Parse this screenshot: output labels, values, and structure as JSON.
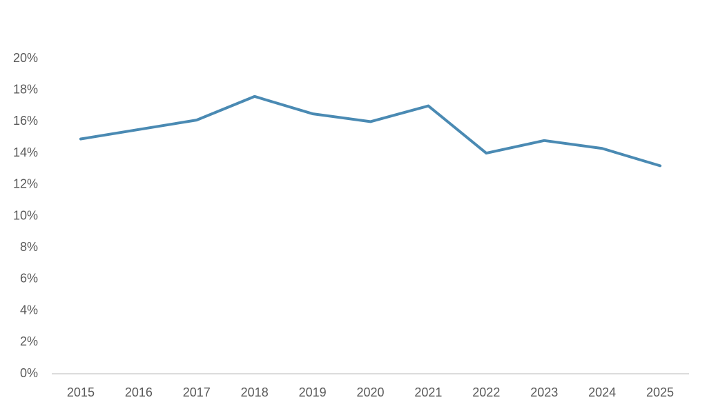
{
  "chart_data": {
    "type": "line",
    "categories": [
      "2015",
      "2016",
      "2017",
      "2018",
      "2019",
      "2020",
      "2021",
      "2022",
      "2023",
      "2024",
      "2025"
    ],
    "values": [
      14.9,
      15.5,
      16.1,
      17.6,
      16.5,
      16.0,
      17.0,
      14.0,
      14.8,
      14.3,
      13.2
    ],
    "color": "#4a8ab3",
    "ylim": [
      0,
      20
    ],
    "yticks": [
      {
        "value": 0,
        "label": "0%"
      },
      {
        "value": 2,
        "label": "2%"
      },
      {
        "value": 4,
        "label": "4%"
      },
      {
        "value": 6,
        "label": "6%"
      },
      {
        "value": 8,
        "label": "8%"
      },
      {
        "value": 10,
        "label": "10%"
      },
      {
        "value": 12,
        "label": "12%"
      },
      {
        "value": 14,
        "label": "14%"
      },
      {
        "value": 16,
        "label": "16%"
      },
      {
        "value": 18,
        "label": "18%"
      },
      {
        "value": 20,
        "label": "20%"
      }
    ],
    "grid": false
  }
}
